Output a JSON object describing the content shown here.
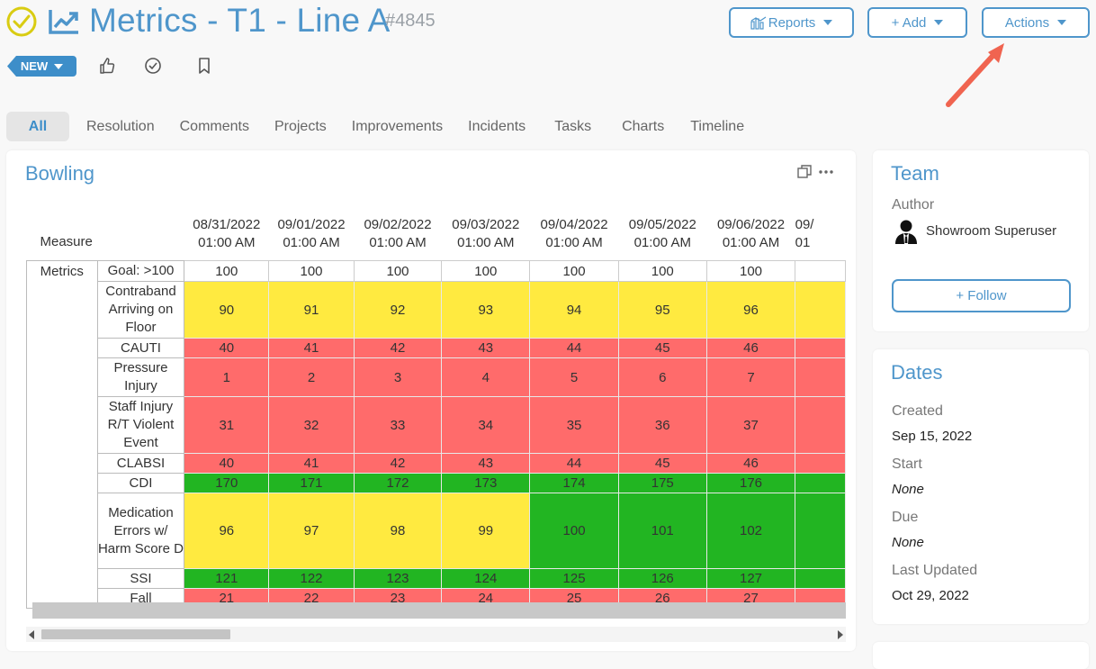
{
  "header": {
    "title": "Metrics - T1 - Line A",
    "record_id": "#4845",
    "reports_label": "Reports",
    "add_label": "+ Add",
    "actions_label": "Actions",
    "status_label": "NEW"
  },
  "tabs": [
    "All",
    "Resolution",
    "Comments",
    "Projects",
    "Improvements",
    "Incidents",
    "Tasks",
    "Charts",
    "Timeline"
  ],
  "bowling": {
    "title": "Bowling",
    "measure_label": "Measure",
    "group_label": "Metrics",
    "dates": [
      [
        "08/31/2022",
        "01:00 AM"
      ],
      [
        "09/01/2022",
        "01:00 AM"
      ],
      [
        "09/02/2022",
        "01:00 AM"
      ],
      [
        "09/03/2022",
        "01:00 AM"
      ],
      [
        "09/04/2022",
        "01:00 AM"
      ],
      [
        "09/05/2022",
        "01:00 AM"
      ],
      [
        "09/06/2022",
        "01:00 AM"
      ],
      [
        "09/",
        "01"
      ]
    ],
    "rows": [
      {
        "label": "Goal: >100",
        "values": [
          100,
          100,
          100,
          100,
          100,
          100,
          100,
          ""
        ],
        "colors": [
          "w",
          "w",
          "w",
          "w",
          "w",
          "w",
          "w",
          "w"
        ]
      },
      {
        "label": "Contraband Arriving on Floor",
        "values": [
          90,
          91,
          92,
          93,
          94,
          95,
          96,
          ""
        ],
        "colors": [
          "y",
          "y",
          "y",
          "y",
          "y",
          "y",
          "y",
          "y"
        ]
      },
      {
        "label": "CAUTI",
        "values": [
          40,
          41,
          42,
          43,
          44,
          45,
          46,
          ""
        ],
        "colors": [
          "r",
          "r",
          "r",
          "r",
          "r",
          "r",
          "r",
          "r"
        ]
      },
      {
        "label": "Pressure Injury",
        "values": [
          1,
          2,
          3,
          4,
          5,
          6,
          7,
          ""
        ],
        "colors": [
          "r",
          "r",
          "r",
          "r",
          "r",
          "r",
          "r",
          "r"
        ]
      },
      {
        "label": "Staff Injury R/T Violent Event",
        "values": [
          31,
          32,
          33,
          34,
          35,
          36,
          37,
          ""
        ],
        "colors": [
          "r",
          "r",
          "r",
          "r",
          "r",
          "r",
          "r",
          "r"
        ]
      },
      {
        "label": "CLABSI",
        "values": [
          40,
          41,
          42,
          43,
          44,
          45,
          46,
          ""
        ],
        "colors": [
          "r",
          "r",
          "r",
          "r",
          "r",
          "r",
          "r",
          "r"
        ]
      },
      {
        "label": "CDI",
        "values": [
          170,
          171,
          172,
          173,
          174,
          175,
          176,
          ""
        ],
        "colors": [
          "g",
          "g",
          "g",
          "g",
          "g",
          "g",
          "g",
          "g"
        ]
      },
      {
        "label": "Medication Errors w/ Harm Score D",
        "values": [
          96,
          97,
          98,
          99,
          100,
          101,
          102,
          ""
        ],
        "colors": [
          "y",
          "y",
          "y",
          "y",
          "g",
          "g",
          "g",
          "g"
        ]
      },
      {
        "label": "SSI",
        "values": [
          121,
          122,
          123,
          124,
          125,
          126,
          127,
          ""
        ],
        "colors": [
          "g",
          "g",
          "g",
          "g",
          "g",
          "g",
          "g",
          "g"
        ]
      },
      {
        "label": "Fall",
        "values": [
          21,
          22,
          23,
          24,
          25,
          26,
          27,
          ""
        ],
        "colors": [
          "r",
          "r",
          "r",
          "r",
          "r",
          "r",
          "r",
          "r"
        ]
      }
    ]
  },
  "team": {
    "title": "Team",
    "author_label": "Author",
    "author_name": "Showroom Superuser",
    "follow_label": "+ Follow"
  },
  "dates": {
    "title": "Dates",
    "created_label": "Created",
    "created_value": "Sep 15, 2022",
    "start_label": "Start",
    "start_value": "None",
    "due_label": "Due",
    "due_value": "None",
    "updated_label": "Last Updated",
    "updated_value": "Oct 29, 2022"
  },
  "colors": {
    "accent": "#4f96cb",
    "red": "#ff6b6b",
    "yellow": "#ffea40",
    "green": "#22b522"
  }
}
